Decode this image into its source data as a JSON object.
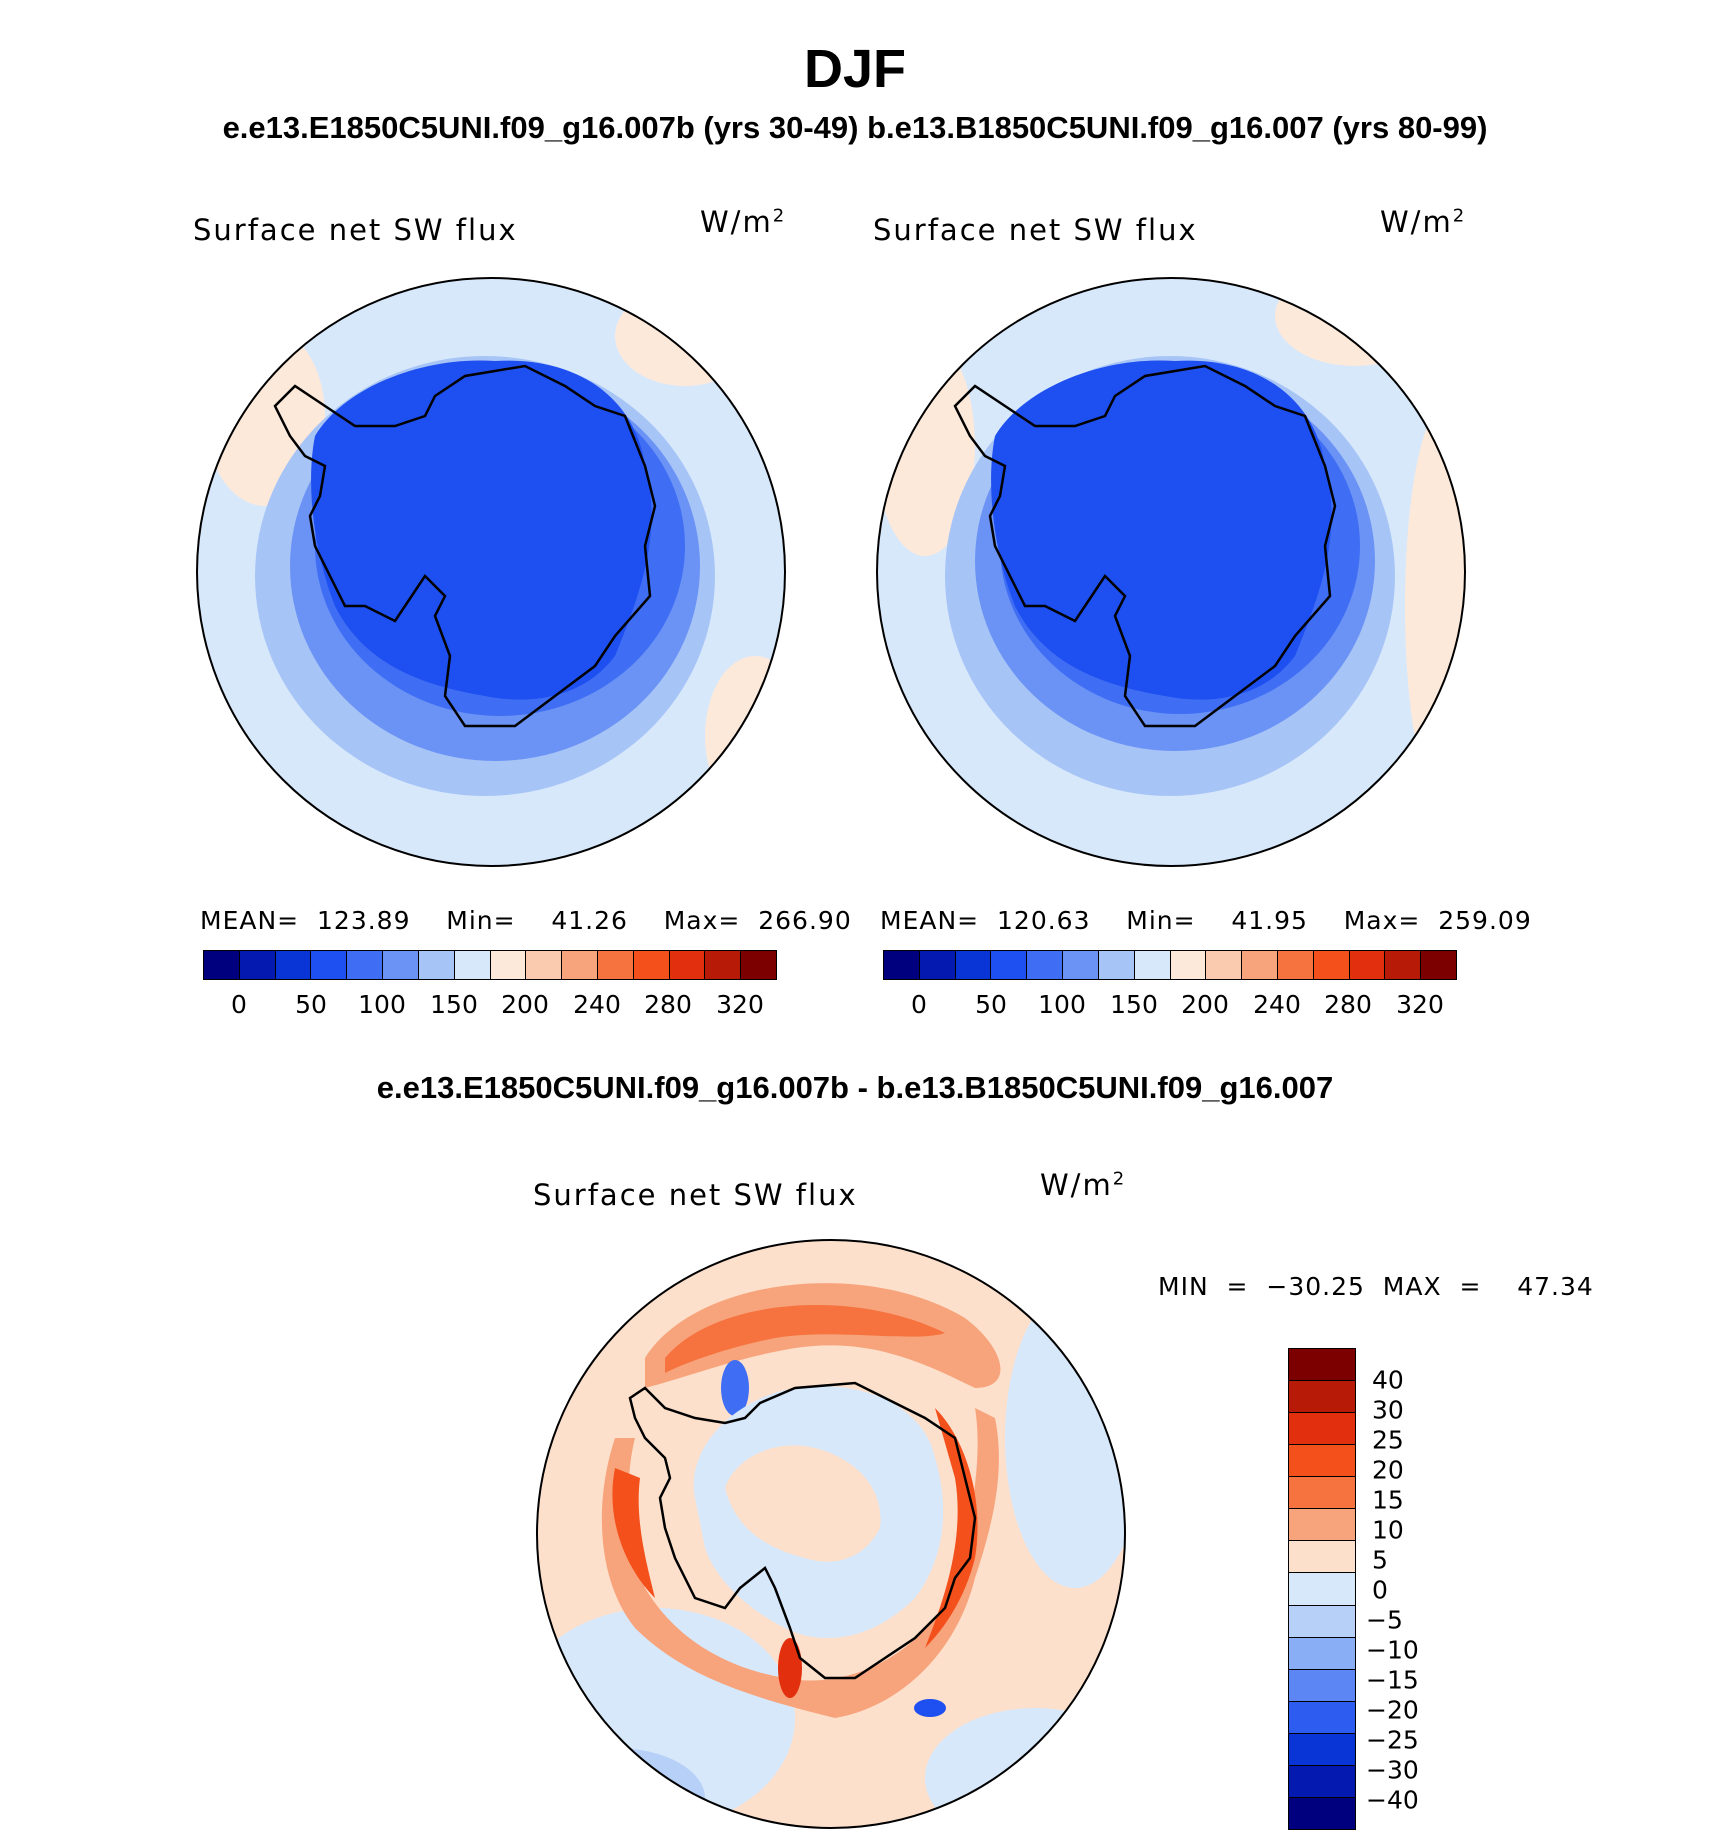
{
  "title": "DJF",
  "subtitle": "e.e13.E1850C5UNI.f09_g16.007b (yrs 30-49)  b.e13.B1850C5UNI.f09_g16.007 (yrs 80-99)",
  "diff_title": "e.e13.E1850C5UNI.f09_g16.007b - b.e13.B1850C5UNI.f09_g16.007",
  "colors": {
    "abs_scale": [
      "#00007f",
      "#0419b0",
      "#0a35d6",
      "#1e4ff0",
      "#3f6ef4",
      "#6b93f5",
      "#a7c4f7",
      "#d7e8fb",
      "#fde9da",
      "#fbcbb0",
      "#f7a47c",
      "#f6733f",
      "#f4501c",
      "#e2300e",
      "#b81a08",
      "#7c0000"
    ],
    "diff_scale": [
      "#7c0000",
      "#b81a08",
      "#e2300e",
      "#f4501c",
      "#f6733f",
      "#f7a47c",
      "#fde0cc",
      "#d7e8fb",
      "#b7d0f8",
      "#8aaef6",
      "#5c86f3",
      "#2c5cf0",
      "#0a35d6",
      "#0419b0",
      "#00007f"
    ]
  },
  "panels": [
    {
      "title": "Surface net SW flux",
      "unit_base": "W/m",
      "unit_exp": "2",
      "stats": "MEAN=  123.89    Min=    41.26    Max=  266.90",
      "ticks": [
        "0",
        "50",
        "100",
        "150",
        "200",
        "240",
        "280",
        "320"
      ]
    },
    {
      "title": "Surface net SW flux",
      "unit_base": "W/m",
      "unit_exp": "2",
      "stats": "MEAN=  120.63    Min=    41.95    Max=  259.09",
      "ticks": [
        "0",
        "50",
        "100",
        "150",
        "200",
        "240",
        "280",
        "320"
      ]
    }
  ],
  "diff_panel": {
    "title": "Surface net SW flux",
    "unit_base": "W/m",
    "unit_exp": "2",
    "stats": "MIN  =  −30.25  MAX  =    47.34",
    "ticks": [
      "40",
      "30",
      "25",
      "20",
      "15",
      "10",
      "5",
      "0",
      "−5",
      "−10",
      "−15",
      "−20",
      "−25",
      "−30",
      "−40"
    ]
  }
}
